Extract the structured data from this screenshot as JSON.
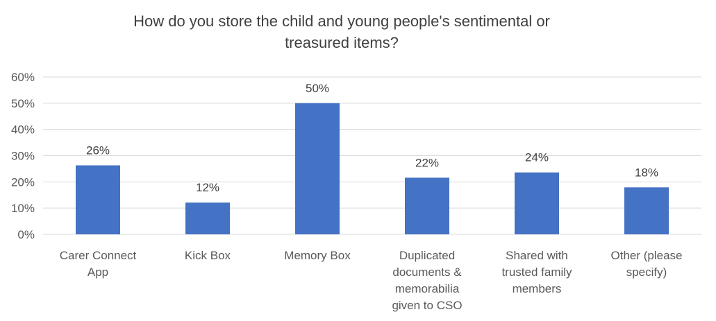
{
  "chart_data": {
    "type": "bar",
    "title": "How do you store the child and young people's sentimental or treasured items?",
    "title_lines": [
      "How do you store the child and young people's sentimental or",
      "treasured items?"
    ],
    "categories": [
      "Carer Connect App",
      "Kick Box",
      "Memory Box",
      "Duplicated documents & memorabilia given to CSO",
      "Shared with trusted family members",
      "Other (please specify)"
    ],
    "category_label_lines": [
      [
        "Carer Connect",
        "App"
      ],
      [
        "Kick Box"
      ],
      [
        "Memory Box"
      ],
      [
        "Duplicated",
        "documents &",
        "memorabilia",
        "given to CSO"
      ],
      [
        "Shared with",
        "trusted family",
        "members"
      ],
      [
        "Other (please",
        "specify)"
      ]
    ],
    "values": [
      26.3,
      12.1,
      50.0,
      21.6,
      23.6,
      17.9
    ],
    "data_labels": [
      "26%",
      "12%",
      "50%",
      "22%",
      "24%",
      "18%"
    ],
    "ylim": [
      0,
      60
    ],
    "yticks": [
      0,
      10,
      20,
      30,
      40,
      50,
      60
    ],
    "ytick_labels": [
      "0%",
      "10%",
      "20%",
      "30%",
      "40%",
      "50%",
      "60%"
    ],
    "xlabel": "",
    "ylabel": "",
    "grid": true,
    "legend": "none",
    "bar_color": "#4472c4"
  }
}
